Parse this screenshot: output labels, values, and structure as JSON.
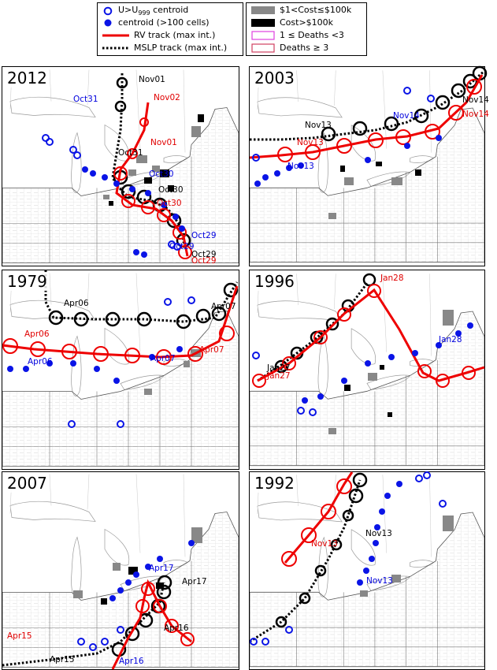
{
  "legend_left": {
    "items": [
      {
        "label": "U>U",
        "sub": "999",
        "tail": " centroid"
      },
      {
        "label": "centroid (>100 cells)"
      },
      {
        "label": "RV track (max int.)"
      },
      {
        "label": "MSLP track (max int.)"
      }
    ]
  },
  "legend_right": {
    "items": [
      {
        "label": "$1<Cost≤$100k"
      },
      {
        "label": "Cost>$100k"
      },
      {
        "label": "1 ≤ Deaths <3"
      },
      {
        "label": "Deaths ≥ 3"
      }
    ]
  },
  "colors": {
    "rv": "#ee0000",
    "mslp": "#000000",
    "centroid": "#0a14e6",
    "cost_low": "#888888",
    "cost_high": "#000000",
    "deaths_low": "#e040e0",
    "deaths_high": "#d04060"
  },
  "panels": [
    {
      "year": "2012",
      "labels": [
        "Nov01",
        "Nov02",
        "Oct31",
        "Oct31",
        "Nov01",
        "Oct30",
        "Oct30",
        "Oct30",
        "Oct29",
        "Oct29",
        "Oct29",
        "Oct29"
      ]
    },
    {
      "year": "2003",
      "labels": [
        "Nov13",
        "Nov13",
        "Nov13",
        "Nov14",
        "Nov14",
        "Nov14"
      ]
    },
    {
      "year": "1979",
      "labels": [
        "Apr06",
        "Apr06",
        "Apr06",
        "Apr07",
        "Apr07",
        "Apr07"
      ]
    },
    {
      "year": "1996",
      "labels": [
        "Jan28",
        "Jan27",
        "Jan27",
        "Jan28"
      ]
    },
    {
      "year": "2007",
      "labels": [
        "Apr17",
        "Apr16",
        "Apr15",
        "Apr15",
        "Apr17",
        "Apr16"
      ]
    },
    {
      "year": "1992",
      "labels": [
        "Nov13",
        "Nov13",
        "Nov13"
      ]
    }
  ]
}
